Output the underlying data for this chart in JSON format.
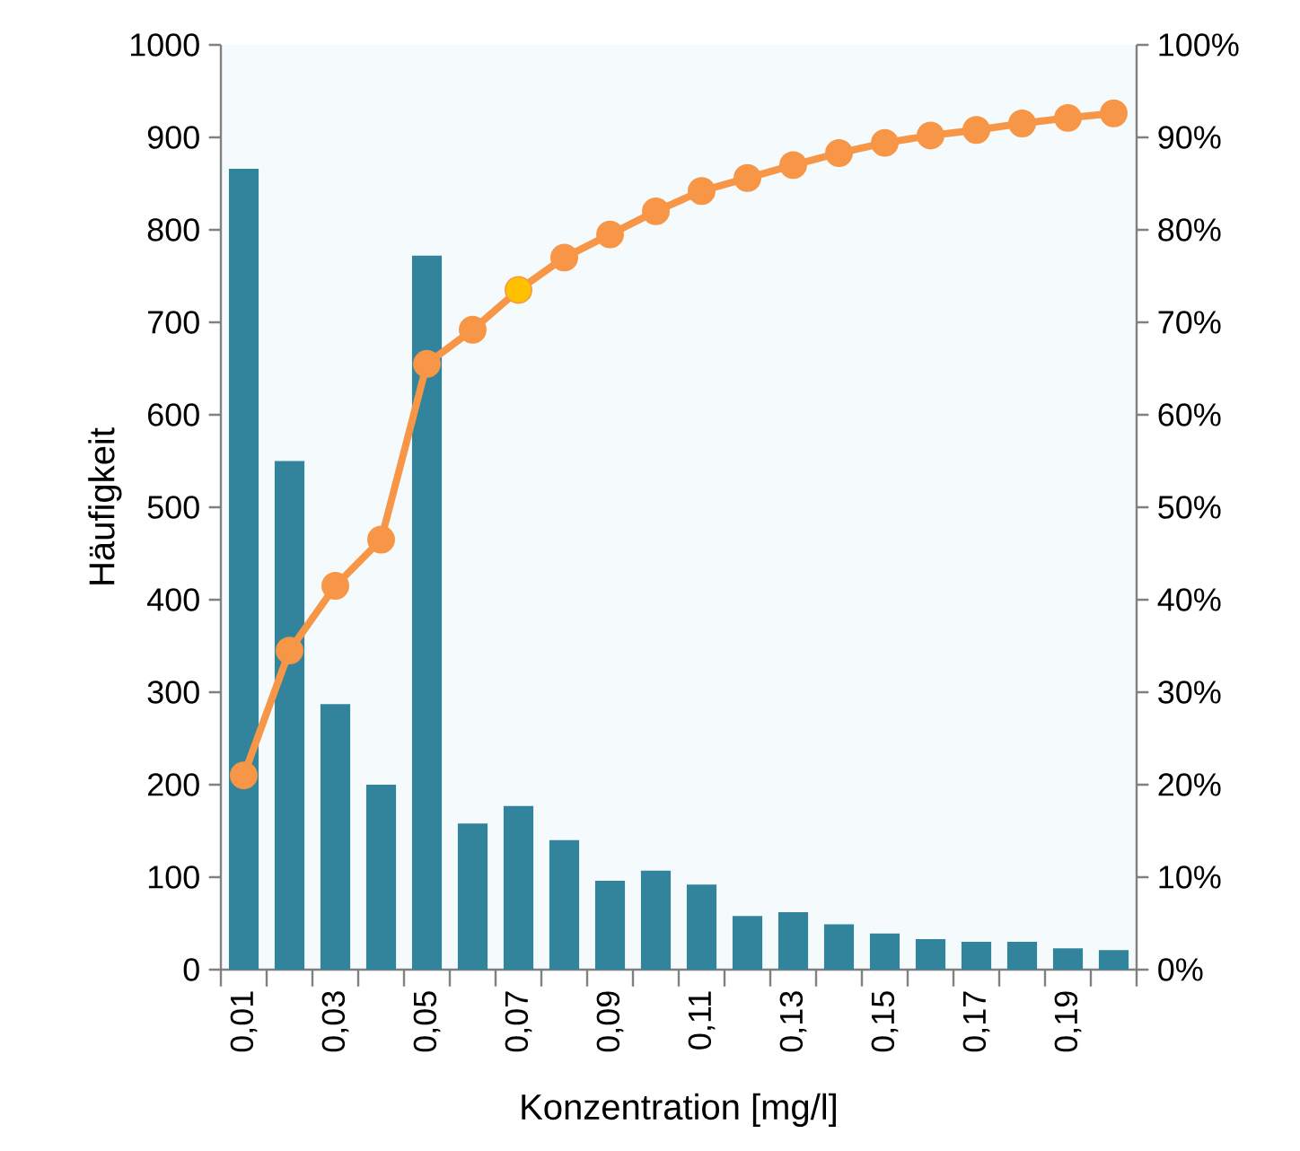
{
  "chart_data": {
    "type": "bar",
    "xlabel": "Konzentration [mg/l]",
    "ylabel": "Häufigkeit",
    "categories": [
      "0,01",
      null,
      "0,03",
      null,
      "0,05",
      null,
      "0,07",
      null,
      "0,09",
      null,
      "0,11",
      null,
      "0,13",
      null,
      "0,15",
      null,
      "0,17",
      null,
      "0,19",
      null
    ],
    "series": [
      {
        "color": "#31849b",
        "values": [
          866,
          550,
          287,
          200,
          772,
          158,
          177,
          140,
          96,
          107,
          92,
          58,
          62,
          49,
          39,
          33,
          30,
          30,
          23,
          21
        ]
      },
      {
        "type": "line",
        "axis": "y2",
        "color": "#f79646",
        "colors": [
          "#f79646",
          "#f79646",
          "#f79646",
          "#f79646",
          "#f79646",
          "#f79646",
          "#ffc000",
          "#f79646",
          "#f79646",
          "#f79646",
          "#f79646",
          "#f79646",
          "#f79646",
          "#f79646",
          "#f79646",
          "#f79646",
          "#f79646",
          "#f79646",
          "#f79646",
          "#f79646"
        ],
        "values": [
          21,
          34.5,
          41.5,
          46.5,
          65.5,
          69.2,
          73.5,
          77,
          79.5,
          82,
          84.2,
          85.6,
          87,
          88.3,
          89.4,
          90.2,
          90.8,
          91.5,
          92.1,
          92.6
        ]
      }
    ],
    "marker": "circle",
    "ylim": [
      0,
      1000
    ],
    "yticks": [
      0,
      100,
      200,
      300,
      400,
      500,
      600,
      700,
      800,
      900,
      1000
    ],
    "y2lim": [
      0,
      100
    ],
    "y2ticks": [
      {
        "value": 0,
        "label": "0%"
      },
      {
        "value": 10,
        "label": "10%"
      },
      {
        "value": 20,
        "label": "20%"
      },
      {
        "value": 30,
        "label": "30%"
      },
      {
        "value": 40,
        "label": "40%"
      },
      {
        "value": 50,
        "label": "50%"
      },
      {
        "value": 60,
        "label": "60%"
      },
      {
        "value": 70,
        "label": "70%"
      },
      {
        "value": 80,
        "label": "80%"
      },
      {
        "value": 90,
        "label": "90%"
      },
      {
        "value": 100,
        "label": "100%"
      }
    ]
  }
}
